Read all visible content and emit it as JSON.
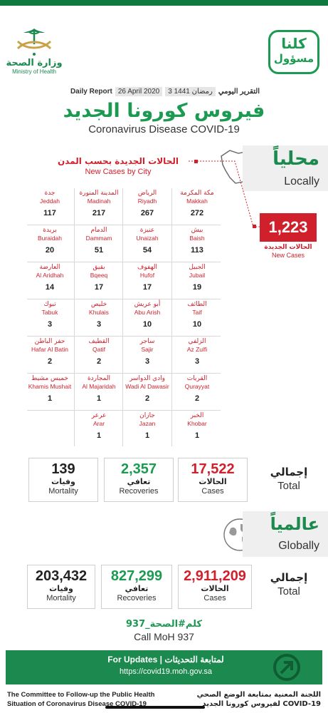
{
  "header": {
    "moh_ar": "وزارة الصحة",
    "moh_en": "Ministry of Health",
    "kolona_line1": "كلنا",
    "kolona_line2": "مسؤول",
    "report_ar": "التقرير اليومي",
    "report_date_hijri": "3 رمضان 1441",
    "report_date": "26 April 2020",
    "report_en": "Daily Report",
    "title_ar": "فيروس كورونا الجديد",
    "title_en": "Coronavirus Disease COVID-19"
  },
  "local": {
    "tag_ar": "محلياً",
    "tag_en": "Locally",
    "by_city_ar": "الحالات الجديدة بحسب المدن",
    "by_city_en": "New Cases by City",
    "new_cases_value": "1,223",
    "new_cases_ar": "الحالات الجديدة",
    "new_cases_en": "New Cases"
  },
  "cities": [
    {
      "ar": "مكة المكرمة",
      "en": "Makkah",
      "value": "272"
    },
    {
      "ar": "الرياض",
      "en": "Riyadh",
      "value": "267"
    },
    {
      "ar": "المدينة المنورة",
      "en": "Madinah",
      "value": "217"
    },
    {
      "ar": "جدة",
      "en": "Jeddah",
      "value": "117"
    },
    {
      "ar": "بيش",
      "en": "Baish",
      "value": "113"
    },
    {
      "ar": "عنيزة",
      "en": "Unaizah",
      "value": "54"
    },
    {
      "ar": "الدمام",
      "en": "Dammam",
      "value": "51"
    },
    {
      "ar": "بريدة",
      "en": "Buraidah",
      "value": "20"
    },
    {
      "ar": "الجبيل",
      "en": "Jubail",
      "value": "19"
    },
    {
      "ar": "الهفوف",
      "en": "Hufof",
      "value": "17"
    },
    {
      "ar": "بقيق",
      "en": "Bqeeq",
      "value": "17"
    },
    {
      "ar": "العارضة",
      "en": "Al Aridhah",
      "value": "14"
    },
    {
      "ar": "الطائف",
      "en": "Taif",
      "value": "10"
    },
    {
      "ar": "أبو عريش",
      "en": "Abu Arish",
      "value": "10"
    },
    {
      "ar": "خليص",
      "en": "Khulais",
      "value": "3"
    },
    {
      "ar": "تبوك",
      "en": "Tabuk",
      "value": "3"
    },
    {
      "ar": "الزلفي",
      "en": "Az Zulfi",
      "value": "3"
    },
    {
      "ar": "ساجر",
      "en": "Sajir",
      "value": "3"
    },
    {
      "ar": "القطيف",
      "en": "Qatif",
      "value": "2"
    },
    {
      "ar": "حفر الباطن",
      "en": "Hafar Al Batin",
      "value": "2"
    },
    {
      "ar": "القريات",
      "en": "Qurayyat",
      "value": "2"
    },
    {
      "ar": "وادي الدواسر",
      "en": "Wadi Al Dawasir",
      "value": "2"
    },
    {
      "ar": "المجاردة",
      "en": "Al Majaridah",
      "value": "1"
    },
    {
      "ar": "خميس مشيط",
      "en": "Khamis Mushait",
      "value": "1"
    },
    {
      "ar": "الخبر",
      "en": "Khobar",
      "value": "1"
    },
    {
      "ar": "جازان",
      "en": "Jazan",
      "value": "1"
    },
    {
      "ar": "عرعر",
      "en": "Arar",
      "value": "1"
    }
  ],
  "local_totals": {
    "total_ar": "إجمالي",
    "total_en": "Total",
    "cases_value": "17,522",
    "cases_ar": "الحالات",
    "cases_en": "Cases",
    "recoveries_value": "2,357",
    "recoveries_ar": "تعافي",
    "recoveries_en": "Recoveries",
    "mortality_value": "139",
    "mortality_ar": "وفيات",
    "mortality_en": "Mortality"
  },
  "global": {
    "tag_ar": "عالمياً",
    "tag_en": "Globally",
    "total_ar": "إجمالي",
    "total_en": "Total",
    "cases_value": "2,911,209",
    "cases_ar": "الحالات",
    "cases_en": "Cases",
    "recoveries_value": "827,299",
    "recoveries_ar": "تعافي",
    "recoveries_en": "Recoveries",
    "mortality_value": "203,432",
    "mortality_ar": "وفيات",
    "mortality_en": "Mortality"
  },
  "call": {
    "ar": "كلم#الصحة_937",
    "en": "Call MoH 937"
  },
  "updates": {
    "label": "For Updates | لمتابعة التحديثات",
    "url": "https://covid19.moh.gov.sa"
  },
  "footer": {
    "en_line1": "The Committee to Follow-up the Public Health",
    "en_line2": "Situation of Coronavirus Disease COVID-19",
    "ar_line1": "اللجنة المعنية بمتابعة الوضع الصحي",
    "ar_line2": "لفيروس كورونا الجديد COVID-19"
  },
  "colors": {
    "green": "#1c8a4e",
    "red": "#d0202b",
    "grey_panel": "#efefef"
  }
}
